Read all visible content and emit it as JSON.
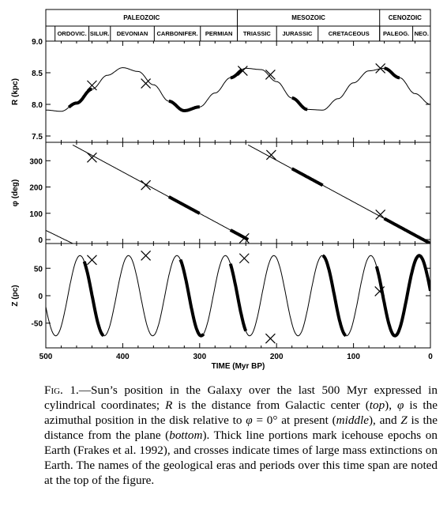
{
  "timeline": {
    "eras": [
      {
        "name": "PALEOZOIC",
        "start": 500,
        "end": 251
      },
      {
        "name": "MESOZOIC",
        "start": 251,
        "end": 66
      },
      {
        "name": "CENOZOIC",
        "start": 66,
        "end": 0
      }
    ],
    "periods": [
      {
        "name": "ORDOVIC.",
        "start": 488,
        "end": 444
      },
      {
        "name": "SILUR.",
        "start": 444,
        "end": 416
      },
      {
        "name": "DEVONIAN",
        "start": 416,
        "end": 359
      },
      {
        "name": "CARBONIFER.",
        "start": 359,
        "end": 299
      },
      {
        "name": "PERMIAN",
        "start": 299,
        "end": 251
      },
      {
        "name": "TRIASSIC",
        "start": 251,
        "end": 200
      },
      {
        "name": "JURASSIC",
        "start": 200,
        "end": 146
      },
      {
        "name": "CRETACEOUS",
        "start": 146,
        "end": 66
      },
      {
        "name": "PALEOG.",
        "start": 66,
        "end": 23
      },
      {
        "name": "NEO.",
        "start": 23,
        "end": 0
      }
    ]
  },
  "chart_data": [
    {
      "type": "line",
      "ylabel": "R (kpc)",
      "ylim": [
        7.4,
        9.0
      ],
      "yticks": [
        "9.0",
        "8.5",
        "8.0",
        "7.5"
      ],
      "ytick_values": [
        9.0,
        8.5,
        8.0,
        7.5
      ],
      "xlim": [
        500,
        0
      ],
      "series": [
        {
          "x": [
            500,
            480,
            460,
            440,
            420,
            400,
            380,
            360,
            340,
            320,
            300,
            280,
            260,
            240,
            220,
            200,
            180,
            160,
            140,
            120,
            100,
            80,
            60,
            40,
            20,
            0
          ],
          "values": [
            7.91,
            7.89,
            8.02,
            8.24,
            8.46,
            8.58,
            8.52,
            8.31,
            8.05,
            7.9,
            7.96,
            8.18,
            8.42,
            8.57,
            8.55,
            8.36,
            8.1,
            7.92,
            7.91,
            8.09,
            8.34,
            8.53,
            8.57,
            8.42,
            8.17,
            8.0
          ]
        }
      ],
      "thick": [
        [
          470,
          440
        ],
        [
          340,
          300
        ],
        [
          260,
          245
        ],
        [
          180,
          160
        ],
        [
          60,
          40
        ]
      ],
      "crosses": [
        {
          "x": 440,
          "y": 8.3
        },
        {
          "x": 370,
          "y": 8.33
        },
        {
          "x": 244,
          "y": 8.53
        },
        {
          "x": 208,
          "y": 8.47
        },
        {
          "x": 65,
          "y": 8.57
        }
      ]
    },
    {
      "type": "line",
      "ylabel": "φ (deg)",
      "ylim": [
        -15,
        370
      ],
      "yticks": [
        "300",
        "200",
        "100",
        "0"
      ],
      "ytick_values": [
        300,
        200,
        100,
        0
      ],
      "xlim": [
        500,
        0
      ],
      "series": [
        {
          "x": [
            465,
            237
          ],
          "values": [
            360,
            0
          ]
        },
        {
          "x": [
            500,
            465
          ],
          "values": [
            35,
            -15
          ]
        },
        {
          "x": [
            237,
            0
          ],
          "values": [
            360,
            -15
          ]
        }
      ],
      "thick": [
        [
          340,
          300
        ],
        [
          260,
          237
        ],
        [
          180,
          140
        ],
        [
          60,
          0
        ]
      ],
      "crosses": [
        {
          "x": 440,
          "y": 312
        },
        {
          "x": 370,
          "y": 207
        },
        {
          "x": 242,
          "y": 5
        },
        {
          "x": 207,
          "y": 322
        },
        {
          "x": 65,
          "y": 95
        }
      ]
    },
    {
      "type": "line",
      "ylabel": "Z (pc)",
      "ylim": [
        -95,
        95
      ],
      "yticks": [
        "50",
        "0",
        "-50"
      ],
      "ytick_values": [
        50,
        0,
        -50
      ],
      "xlim": [
        500,
        0
      ],
      "xlabel": "TIME (Myr BP)",
      "xticks": [
        "500",
        "400",
        "300",
        "200",
        "100",
        "0"
      ],
      "xtick_values": [
        500,
        400,
        300,
        200,
        100,
        0
      ],
      "period_myr": 63,
      "amplitude_pc": 73,
      "series": [
        {
          "x": [
            500,
            0
          ],
          "values": [
            65,
            0
          ]
        }
      ],
      "thick": [
        [
          450,
          425
        ],
        [
          325,
          295
        ],
        [
          260,
          240
        ],
        [
          140,
          110
        ],
        [
          70,
          0
        ]
      ],
      "crosses": [
        {
          "x": 440,
          "y": 65
        },
        {
          "x": 370,
          "y": 73
        },
        {
          "x": 242,
          "y": 68
        },
        {
          "x": 208,
          "y": -78
        },
        {
          "x": 66,
          "y": 8
        }
      ]
    }
  ],
  "caption": {
    "label": "Fig. 1.",
    "html": "—Sun’s position in the Galaxy over the last 500 Myr expressed in cylindrical coordinates; <i>R</i> is the distance from Galactic center (<i>top</i>), <i>φ</i> is the azimuthal position in the disk relative to <i>φ</i> = 0° at present (<i>middle</i>), and <i>Z</i> is the distance from the plane (<i>bottom</i>). Thick line portions mark icehouse epochs on Earth (Frakes et al. 1992), and crosses indicate times of large mass extinctions on Earth. The names of the geological eras and periods over this time span are noted at the top of the figure."
  }
}
